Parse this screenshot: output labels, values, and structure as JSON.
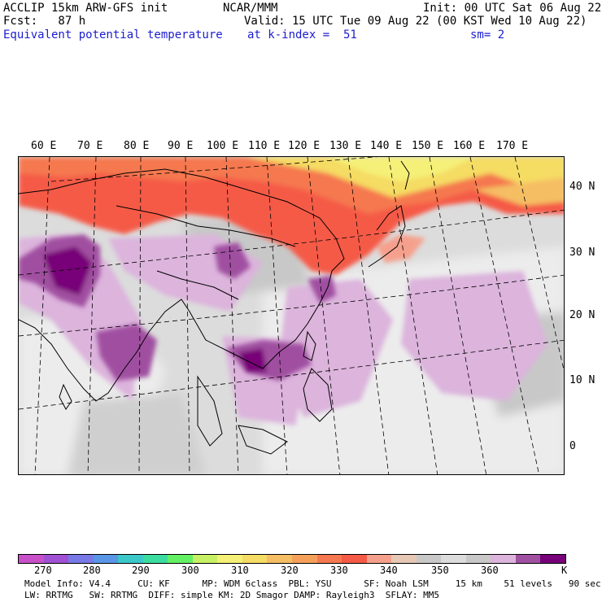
{
  "header": {
    "model": "ACCLIP 15km ARW-GFS init",
    "agency": "NCAR/MMM",
    "init": "Init: 00 UTC Sat 06 Aug 22",
    "fcst": "Fcst:   87 h",
    "valid": "Valid: 15 UTC Tue 09 Aug 22 (00 KST Wed 10 Aug 22)",
    "field": "Equivalent potential temperature",
    "level": "at k-index =  51",
    "smoothing": "sm= 2"
  },
  "longitude_labels": [
    "60 E",
    "70 E",
    "80 E",
    "90 E",
    "100 E",
    "110 E",
    "120 E",
    "130 E",
    "140 E",
    "150 E",
    "160 E",
    "170 E"
  ],
  "latitude_labels": [
    "40 N",
    "30 N",
    "20 N",
    "10 N",
    "0"
  ],
  "colorbar": {
    "colors": [
      "#c850c8",
      "#a050d2",
      "#7878e6",
      "#5a96e6",
      "#3cc8c8",
      "#3cdca0",
      "#64f064",
      "#c8f064",
      "#f5f078",
      "#f5dc64",
      "#f5be64",
      "#f5a05a",
      "#f57850",
      "#f55a46",
      "#f5a08c",
      "#e6c8b4",
      "#c8c8c8",
      "#dcdcdc",
      "#c8c8c8",
      "#dcb4dc",
      "#a050a0",
      "#780078"
    ],
    "ticks": [
      "270",
      "280",
      "290",
      "300",
      "310",
      "320",
      "330",
      "340",
      "350",
      "360"
    ],
    "unit": "K"
  },
  "footer": {
    "line1": "Model Info: V4.4     CU: KF      MP: WDM 6class  PBL: YSU      SF: Noah LSM     15 km    51 levels   90 sec",
    "line2": "LW: RRTMG   SW: RRTMG  DIFF: simple KM: 2D Smagor DAMP: Rayleigh3  SFLAY: MM5"
  }
}
